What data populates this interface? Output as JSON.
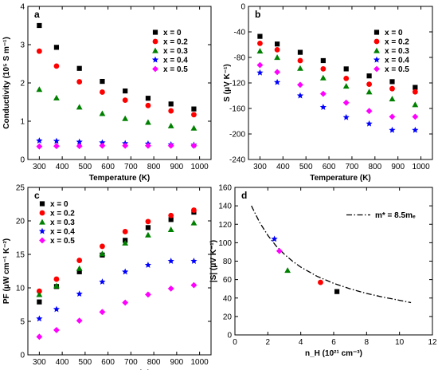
{
  "chart_data": [
    {
      "panel": "a",
      "type": "scatter",
      "xlabel": "Temperature (K)",
      "ylabel": "Conductivity (10⁵ S m⁻¹)",
      "xlim": [
        250,
        1050
      ],
      "ylim": [
        0,
        4
      ],
      "xticks": [
        300,
        400,
        500,
        600,
        700,
        800,
        900,
        1000
      ],
      "yticks": [
        0,
        1,
        2,
        3,
        4
      ],
      "legend_position": "top-right",
      "x": [
        300,
        375,
        475,
        575,
        675,
        775,
        875,
        975
      ],
      "series": [
        {
          "name": "x = 0",
          "marker": "square",
          "color": "#000000",
          "values": [
            3.5,
            2.93,
            2.38,
            2.04,
            1.79,
            1.6,
            1.45,
            1.32
          ]
        },
        {
          "name": "x = 0.2",
          "marker": "circle",
          "color": "#ff0000",
          "values": [
            2.83,
            2.44,
            2.03,
            1.76,
            1.55,
            1.41,
            1.27,
            1.17
          ]
        },
        {
          "name": "x = 0.3",
          "marker": "triangle",
          "color": "#008000",
          "values": [
            1.83,
            1.61,
            1.37,
            1.2,
            1.07,
            0.97,
            0.88,
            0.82
          ]
        },
        {
          "name": "x = 0.4",
          "marker": "star",
          "color": "#0000ff",
          "values": [
            0.49,
            0.48,
            0.46,
            0.44,
            0.42,
            0.41,
            0.39,
            0.38
          ]
        },
        {
          "name": "x = 0.5",
          "marker": "diamond",
          "color": "#ff00ff",
          "values": [
            0.34,
            0.35,
            0.35,
            0.36,
            0.36,
            0.36,
            0.36,
            0.36
          ]
        }
      ]
    },
    {
      "panel": "b",
      "type": "scatter",
      "xlabel": "Temperature (K)",
      "ylabel": "S (μV K⁻¹)",
      "xlim": [
        250,
        1050
      ],
      "ylim": [
        -240,
        0
      ],
      "xticks": [
        300,
        400,
        500,
        600,
        700,
        800,
        900,
        1000
      ],
      "yticks": [
        0,
        -40,
        -80,
        -120,
        -160,
        -200,
        -240
      ],
      "legend_position": "top-right",
      "x": [
        300,
        375,
        475,
        575,
        675,
        775,
        875,
        975
      ],
      "series": [
        {
          "name": "x = 0",
          "marker": "square",
          "color": "#000000",
          "values": [
            -47,
            -59,
            -72,
            -85,
            -98,
            -109,
            -118,
            -127
          ]
        },
        {
          "name": "x = 0.2",
          "marker": "circle",
          "color": "#ff0000",
          "values": [
            -58,
            -68,
            -85,
            -98,
            -113,
            -122,
            -129,
            -134
          ]
        },
        {
          "name": "x = 0.3",
          "marker": "triangle",
          "color": "#008000",
          "values": [
            -70,
            -80,
            -97,
            -112,
            -125,
            -134,
            -145,
            -154
          ]
        },
        {
          "name": "x = 0.4",
          "marker": "star",
          "color": "#0000ff",
          "values": [
            -104,
            -119,
            -140,
            -158,
            -174,
            -184,
            -194,
            -194
          ]
        },
        {
          "name": "x = 0.5",
          "marker": "diamond",
          "color": "#ff00ff",
          "values": [
            -92,
            -103,
            -123,
            -137,
            -151,
            -164,
            -173,
            -173
          ]
        }
      ]
    },
    {
      "panel": "c",
      "type": "scatter",
      "xlabel": "Temperature (K)",
      "ylabel": "PF (μW cm⁻¹ K⁻²)",
      "xlim": [
        250,
        1050
      ],
      "ylim": [
        0,
        25
      ],
      "xticks": [
        300,
        400,
        500,
        600,
        700,
        800,
        900,
        1000
      ],
      "yticks": [
        0,
        5,
        10,
        15,
        20,
        25
      ],
      "legend_position": "top-left",
      "x": [
        300,
        375,
        475,
        575,
        675,
        775,
        875,
        975
      ],
      "series": [
        {
          "name": "x = 0",
          "marker": "square",
          "color": "#000000",
          "values": [
            7.9,
            10.2,
            12.4,
            14.9,
            17.1,
            19.0,
            20.2,
            21.3
          ]
        },
        {
          "name": "x = 0.2",
          "marker": "circle",
          "color": "#ff0000",
          "values": [
            9.5,
            11.3,
            14.1,
            16.2,
            18.4,
            19.9,
            20.8,
            21.6
          ]
        },
        {
          "name": "x = 0.3",
          "marker": "triangle",
          "color": "#008000",
          "values": [
            9.0,
            10.3,
            12.9,
            15.1,
            16.7,
            17.9,
            18.7,
            19.7
          ]
        },
        {
          "name": "x = 0.4",
          "marker": "star",
          "color": "#0000ff",
          "values": [
            5.4,
            6.8,
            9.1,
            10.9,
            12.4,
            13.4,
            14.0,
            14.0
          ]
        },
        {
          "name": "x = 0.5",
          "marker": "diamond",
          "color": "#ff00ff",
          "values": [
            2.7,
            3.7,
            5.1,
            6.4,
            7.8,
            9.0,
            9.9,
            10.4
          ]
        }
      ]
    },
    {
      "panel": "d",
      "type": "scatter",
      "xlabel": "n_H (10²¹ cm⁻³)",
      "ylabel": "|S| (μV K⁻¹)",
      "xlim": [
        0,
        12
      ],
      "ylim": [
        0,
        160
      ],
      "xticks": [
        0,
        2,
        4,
        6,
        8,
        10,
        12
      ],
      "yticks": [
        0,
        20,
        40,
        60,
        80,
        100,
        120,
        140,
        160
      ],
      "legend_position": "top-right",
      "legend_label": "m* = 8.5mₑ",
      "curve": {
        "style": "dash-dot",
        "color": "#000000",
        "x": [
          1.0,
          1.5,
          2.0,
          2.5,
          3.0,
          3.5,
          4.0,
          5.0,
          6.0,
          7.0,
          8.0,
          9.0,
          10.0,
          10.7
        ],
        "y": [
          140,
          122,
          108,
          96.5,
          87.5,
          80,
          73.5,
          63.5,
          56,
          50,
          45,
          41,
          37.5,
          35
        ]
      },
      "points": [
        {
          "x": 2.4,
          "y": 104,
          "marker": "star",
          "color": "#0000ff"
        },
        {
          "x": 2.7,
          "y": 91,
          "marker": "diamond",
          "color": "#ff00ff"
        },
        {
          "x": 3.2,
          "y": 70,
          "marker": "triangle",
          "color": "#008000"
        },
        {
          "x": 5.2,
          "y": 57,
          "marker": "circle",
          "color": "#ff0000"
        },
        {
          "x": 6.2,
          "y": 47,
          "marker": "square",
          "color": "#000000"
        }
      ]
    }
  ]
}
